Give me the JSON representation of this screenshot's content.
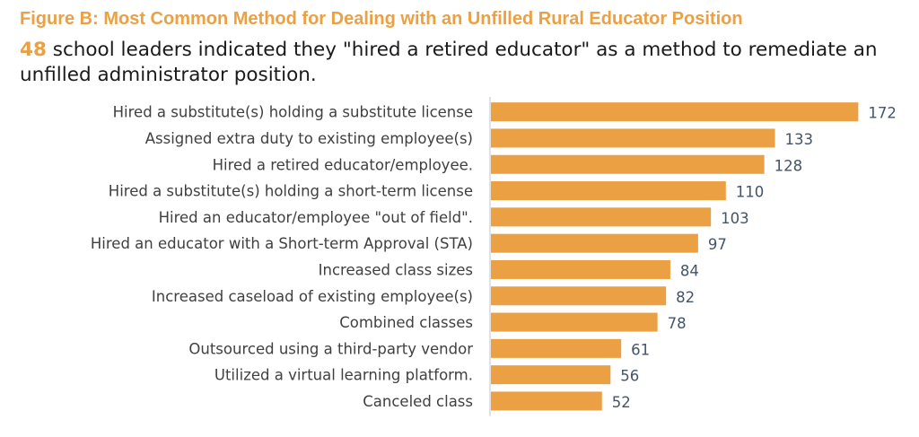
{
  "colors": {
    "accent": "#eba044",
    "bar": "#eba044",
    "axis": "#d9d9d9",
    "label_text": "#404040",
    "value_text": "#44546a"
  },
  "header": {
    "title": "Figure B: Most Common Method for Dealing with an Unfilled Rural Educator Position",
    "subtitle_number": "48",
    "subtitle_text": " school leaders indicated they \"hired a retired educator\" as a method to remediate an unfilled administrator position."
  },
  "chart_data": {
    "type": "bar",
    "orientation": "horizontal",
    "title": "Figure B: Most Common Method for Dealing with an Unfilled Rural Educator Position",
    "categories": [
      "Hired a substitute(s) holding a substitute license",
      "Assigned extra duty to existing employee(s)",
      "Hired a retired educator/employee.",
      "Hired a substitute(s) holding a short-term license",
      "Hired an educator/employee \"out of field\".",
      "Hired an educator with a Short-term Approval (STA)",
      "Increased class sizes",
      "Increased caseload of existing employee(s)",
      "Combined classes",
      "Outsourced using a third-party vendor",
      "Utilized a virtual learning platform.",
      "Canceled class"
    ],
    "values": [
      172,
      133,
      128,
      110,
      103,
      97,
      84,
      82,
      78,
      61,
      56,
      52
    ],
    "data_labels": true,
    "xlim": [
      0,
      180
    ],
    "grid": false,
    "legend": "none"
  }
}
